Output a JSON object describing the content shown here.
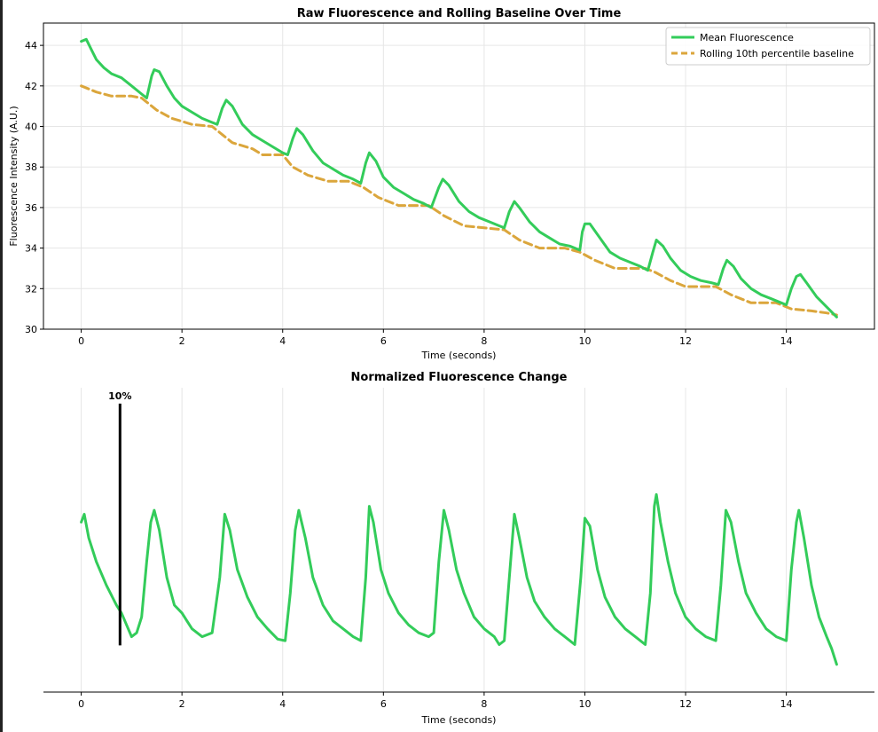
{
  "colors": {
    "fluorescence": "#33cc5a",
    "baseline": "#dba63c",
    "scalebar": "#000000",
    "grid": "#e6e6e6"
  },
  "chart_data": [
    {
      "type": "line",
      "title": "Raw Fluorescence and Rolling Baseline Over Time",
      "xlabel": "Time (seconds)",
      "ylabel": "Fluorescence Intensity (A.U.)",
      "xlim": [
        -0.75,
        15.75
      ],
      "ylim": [
        30,
        45.1
      ],
      "xticks": [
        0,
        2,
        4,
        6,
        8,
        10,
        12,
        14
      ],
      "yticks": [
        30,
        32,
        34,
        36,
        38,
        40,
        42,
        44
      ],
      "grid": true,
      "legend_position": "top-right",
      "series": [
        {
          "name": "Mean Fluorescence",
          "style": "solid",
          "points": [
            [
              0.0,
              44.2
            ],
            [
              0.1,
              44.3
            ],
            [
              0.2,
              43.8
            ],
            [
              0.3,
              43.3
            ],
            [
              0.45,
              42.9
            ],
            [
              0.6,
              42.6
            ],
            [
              0.8,
              42.4
            ],
            [
              1.0,
              42.0
            ],
            [
              1.2,
              41.6
            ],
            [
              1.3,
              41.4
            ],
            [
              1.4,
              42.5
            ],
            [
              1.45,
              42.8
            ],
            [
              1.55,
              42.7
            ],
            [
              1.7,
              42.0
            ],
            [
              1.85,
              41.4
            ],
            [
              2.0,
              41.0
            ],
            [
              2.2,
              40.7
            ],
            [
              2.4,
              40.4
            ],
            [
              2.6,
              40.2
            ],
            [
              2.7,
              40.1
            ],
            [
              2.8,
              40.9
            ],
            [
              2.88,
              41.3
            ],
            [
              3.0,
              41.0
            ],
            [
              3.2,
              40.1
            ],
            [
              3.4,
              39.6
            ],
            [
              3.6,
              39.3
            ],
            [
              3.8,
              39.0
            ],
            [
              4.0,
              38.7
            ],
            [
              4.1,
              38.6
            ],
            [
              4.2,
              39.4
            ],
            [
              4.28,
              39.9
            ],
            [
              4.4,
              39.6
            ],
            [
              4.6,
              38.8
            ],
            [
              4.8,
              38.2
            ],
            [
              5.0,
              37.9
            ],
            [
              5.2,
              37.6
            ],
            [
              5.4,
              37.4
            ],
            [
              5.55,
              37.2
            ],
            [
              5.65,
              38.2
            ],
            [
              5.72,
              38.7
            ],
            [
              5.85,
              38.3
            ],
            [
              6.0,
              37.5
            ],
            [
              6.2,
              37.0
            ],
            [
              6.4,
              36.7
            ],
            [
              6.6,
              36.4
            ],
            [
              6.8,
              36.2
            ],
            [
              6.95,
              36.0
            ],
            [
              7.1,
              37.0
            ],
            [
              7.18,
              37.4
            ],
            [
              7.3,
              37.1
            ],
            [
              7.5,
              36.3
            ],
            [
              7.7,
              35.8
            ],
            [
              7.9,
              35.5
            ],
            [
              8.1,
              35.3
            ],
            [
              8.3,
              35.1
            ],
            [
              8.4,
              35.0
            ],
            [
              8.5,
              35.8
            ],
            [
              8.6,
              36.3
            ],
            [
              8.7,
              36.0
            ],
            [
              8.9,
              35.3
            ],
            [
              9.1,
              34.8
            ],
            [
              9.3,
              34.5
            ],
            [
              9.5,
              34.2
            ],
            [
              9.7,
              34.1
            ],
            [
              9.9,
              33.9
            ],
            [
              9.95,
              34.8
            ],
            [
              10.0,
              35.2
            ],
            [
              10.1,
              35.2
            ],
            [
              10.3,
              34.5
            ],
            [
              10.5,
              33.8
            ],
            [
              10.7,
              33.5
            ],
            [
              10.9,
              33.3
            ],
            [
              11.1,
              33.1
            ],
            [
              11.25,
              32.9
            ],
            [
              11.35,
              33.8
            ],
            [
              11.42,
              34.4
            ],
            [
              11.55,
              34.1
            ],
            [
              11.7,
              33.5
            ],
            [
              11.9,
              32.9
            ],
            [
              12.1,
              32.6
            ],
            [
              12.3,
              32.4
            ],
            [
              12.5,
              32.3
            ],
            [
              12.65,
              32.2
            ],
            [
              12.75,
              33.0
            ],
            [
              12.82,
              33.4
            ],
            [
              12.95,
              33.1
            ],
            [
              13.1,
              32.5
            ],
            [
              13.3,
              32.0
            ],
            [
              13.5,
              31.7
            ],
            [
              13.7,
              31.5
            ],
            [
              13.9,
              31.3
            ],
            [
              14.0,
              31.2
            ],
            [
              14.1,
              32.0
            ],
            [
              14.2,
              32.6
            ],
            [
              14.28,
              32.7
            ],
            [
              14.4,
              32.3
            ],
            [
              14.6,
              31.6
            ],
            [
              14.8,
              31.1
            ],
            [
              15.0,
              30.6
            ]
          ]
        },
        {
          "name": "Rolling 10th percentile baseline",
          "style": "dashed",
          "points": [
            [
              0.0,
              42.0
            ],
            [
              0.3,
              41.7
            ],
            [
              0.6,
              41.5
            ],
            [
              1.0,
              41.5
            ],
            [
              1.2,
              41.4
            ],
            [
              1.5,
              40.8
            ],
            [
              1.8,
              40.4
            ],
            [
              2.2,
              40.1
            ],
            [
              2.6,
              40.0
            ],
            [
              2.8,
              39.6
            ],
            [
              3.0,
              39.2
            ],
            [
              3.4,
              38.9
            ],
            [
              3.6,
              38.6
            ],
            [
              4.0,
              38.6
            ],
            [
              4.2,
              38.0
            ],
            [
              4.5,
              37.6
            ],
            [
              4.9,
              37.3
            ],
            [
              5.3,
              37.3
            ],
            [
              5.6,
              37.0
            ],
            [
              5.9,
              36.5
            ],
            [
              6.3,
              36.1
            ],
            [
              6.9,
              36.1
            ],
            [
              7.2,
              35.6
            ],
            [
              7.6,
              35.1
            ],
            [
              8.0,
              35.0
            ],
            [
              8.4,
              34.9
            ],
            [
              8.7,
              34.4
            ],
            [
              9.1,
              34.0
            ],
            [
              9.6,
              34.0
            ],
            [
              9.9,
              33.8
            ],
            [
              10.2,
              33.4
            ],
            [
              10.6,
              33.0
            ],
            [
              11.2,
              33.0
            ],
            [
              11.4,
              32.8
            ],
            [
              11.7,
              32.4
            ],
            [
              12.0,
              32.1
            ],
            [
              12.6,
              32.1
            ],
            [
              12.9,
              31.7
            ],
            [
              13.3,
              31.3
            ],
            [
              13.8,
              31.3
            ],
            [
              14.1,
              31.0
            ],
            [
              14.5,
              30.9
            ],
            [
              14.8,
              30.8
            ],
            [
              15.0,
              30.7
            ]
          ]
        }
      ]
    },
    {
      "type": "line",
      "title": "Normalized Fluorescence Change",
      "xlabel": "Time (seconds)",
      "xlim": [
        -0.75,
        15.75
      ],
      "ylim": [
        -0.025,
        0.36
      ],
      "xticks": [
        0,
        2,
        4,
        6,
        8,
        10,
        12,
        14
      ],
      "y_axis_visible": false,
      "grid": true,
      "scale_bar": {
        "label": "10%",
        "x": 0.77,
        "y_bottom": 0.034,
        "y_top": 0.34
      },
      "series": [
        {
          "style": "solid",
          "points": [
            [
              0.0,
              0.19
            ],
            [
              0.06,
              0.2
            ],
            [
              0.15,
              0.17
            ],
            [
              0.3,
              0.14
            ],
            [
              0.5,
              0.11
            ],
            [
              0.7,
              0.085
            ],
            [
              0.8,
              0.075
            ],
            [
              0.9,
              0.06
            ],
            [
              1.0,
              0.045
            ],
            [
              1.1,
              0.05
            ],
            [
              1.2,
              0.07
            ],
            [
              1.3,
              0.14
            ],
            [
              1.38,
              0.19
            ],
            [
              1.45,
              0.205
            ],
            [
              1.55,
              0.18
            ],
            [
              1.7,
              0.12
            ],
            [
              1.85,
              0.085
            ],
            [
              2.0,
              0.075
            ],
            [
              2.1,
              0.065
            ],
            [
              2.2,
              0.055
            ],
            [
              2.4,
              0.045
            ],
            [
              2.6,
              0.05
            ],
            [
              2.75,
              0.12
            ],
            [
              2.85,
              0.2
            ],
            [
              2.95,
              0.18
            ],
            [
              3.1,
              0.13
            ],
            [
              3.3,
              0.095
            ],
            [
              3.5,
              0.07
            ],
            [
              3.7,
              0.055
            ],
            [
              3.9,
              0.042
            ],
            [
              4.05,
              0.04
            ],
            [
              4.15,
              0.1
            ],
            [
              4.25,
              0.18
            ],
            [
              4.32,
              0.205
            ],
            [
              4.45,
              0.17
            ],
            [
              4.6,
              0.12
            ],
            [
              4.8,
              0.085
            ],
            [
              5.0,
              0.065
            ],
            [
              5.2,
              0.055
            ],
            [
              5.4,
              0.045
            ],
            [
              5.55,
              0.04
            ],
            [
              5.65,
              0.12
            ],
            [
              5.72,
              0.21
            ],
            [
              5.8,
              0.19
            ],
            [
              5.95,
              0.13
            ],
            [
              6.1,
              0.1
            ],
            [
              6.3,
              0.075
            ],
            [
              6.5,
              0.06
            ],
            [
              6.7,
              0.05
            ],
            [
              6.9,
              0.045
            ],
            [
              7.0,
              0.05
            ],
            [
              7.1,
              0.14
            ],
            [
              7.2,
              0.205
            ],
            [
              7.3,
              0.18
            ],
            [
              7.45,
              0.13
            ],
            [
              7.6,
              0.1
            ],
            [
              7.8,
              0.07
            ],
            [
              8.0,
              0.055
            ],
            [
              8.2,
              0.045
            ],
            [
              8.3,
              0.035
            ],
            [
              8.4,
              0.04
            ],
            [
              8.5,
              0.12
            ],
            [
              8.6,
              0.2
            ],
            [
              8.7,
              0.17
            ],
            [
              8.85,
              0.12
            ],
            [
              9.0,
              0.09
            ],
            [
              9.2,
              0.07
            ],
            [
              9.4,
              0.055
            ],
            [
              9.6,
              0.045
            ],
            [
              9.8,
              0.035
            ],
            [
              9.92,
              0.12
            ],
            [
              10.0,
              0.195
            ],
            [
              10.1,
              0.185
            ],
            [
              10.25,
              0.13
            ],
            [
              10.4,
              0.095
            ],
            [
              10.6,
              0.07
            ],
            [
              10.8,
              0.055
            ],
            [
              11.0,
              0.045
            ],
            [
              11.2,
              0.035
            ],
            [
              11.3,
              0.1
            ],
            [
              11.38,
              0.21
            ],
            [
              11.42,
              0.225
            ],
            [
              11.5,
              0.19
            ],
            [
              11.65,
              0.14
            ],
            [
              11.8,
              0.1
            ],
            [
              12.0,
              0.07
            ],
            [
              12.2,
              0.055
            ],
            [
              12.4,
              0.045
            ],
            [
              12.6,
              0.04
            ],
            [
              12.7,
              0.11
            ],
            [
              12.8,
              0.205
            ],
            [
              12.9,
              0.19
            ],
            [
              13.05,
              0.14
            ],
            [
              13.2,
              0.1
            ],
            [
              13.4,
              0.075
            ],
            [
              13.6,
              0.055
            ],
            [
              13.8,
              0.045
            ],
            [
              14.0,
              0.04
            ],
            [
              14.1,
              0.13
            ],
            [
              14.2,
              0.19
            ],
            [
              14.25,
              0.205
            ],
            [
              14.35,
              0.17
            ],
            [
              14.5,
              0.11
            ],
            [
              14.65,
              0.07
            ],
            [
              14.8,
              0.045
            ],
            [
              14.9,
              0.03
            ],
            [
              15.0,
              0.01
            ]
          ]
        }
      ]
    }
  ]
}
